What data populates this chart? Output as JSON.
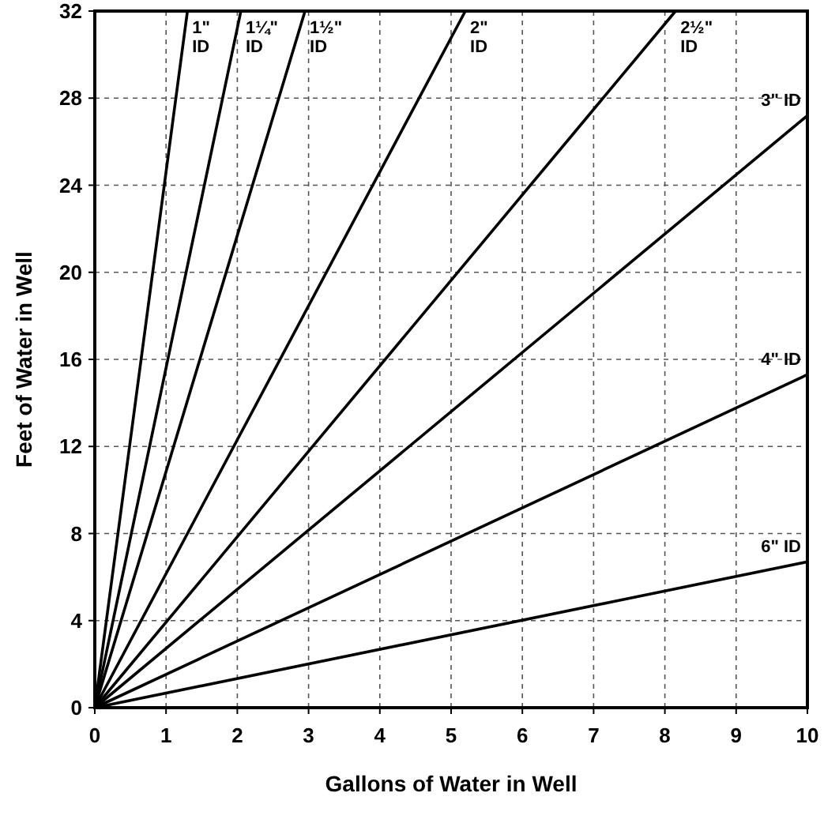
{
  "chart_data": {
    "type": "line",
    "xlabel": "Gallons of Water in Well",
    "ylabel": "Feet of Water in Well",
    "xlim": [
      0,
      10
    ],
    "ylim": [
      0,
      32
    ],
    "xticks": [
      0,
      1,
      2,
      3,
      4,
      5,
      6,
      7,
      8,
      9,
      10
    ],
    "yticks": [
      0,
      4,
      8,
      12,
      16,
      20,
      24,
      28,
      32
    ],
    "grid": true,
    "marker": "none",
    "line_style": "solid",
    "series": [
      {
        "name": "1\" ID",
        "color": "#000000",
        "x": [
          0,
          1.3
        ],
        "values": [
          0,
          32
        ]
      },
      {
        "name": "1¼\" ID",
        "color": "#000000",
        "x": [
          0,
          2.05
        ],
        "values": [
          0,
          32
        ]
      },
      {
        "name": "1½\" ID",
        "color": "#000000",
        "x": [
          0,
          2.95
        ],
        "values": [
          0,
          32
        ]
      },
      {
        "name": "2\" ID",
        "color": "#000000",
        "x": [
          0,
          5.2
        ],
        "values": [
          0,
          32
        ]
      },
      {
        "name": "2½\" ID",
        "color": "#000000",
        "x": [
          0,
          8.15
        ],
        "values": [
          0,
          32
        ]
      },
      {
        "name": "3\" ID",
        "color": "#000000",
        "x": [
          0,
          10
        ],
        "values": [
          0,
          27.2
        ]
      },
      {
        "name": "4\" ID",
        "color": "#000000",
        "x": [
          0,
          10
        ],
        "values": [
          0,
          15.3
        ]
      },
      {
        "name": "6\" ID",
        "color": "#000000",
        "x": [
          0,
          10
        ],
        "values": [
          0,
          6.7
        ]
      }
    ]
  }
}
